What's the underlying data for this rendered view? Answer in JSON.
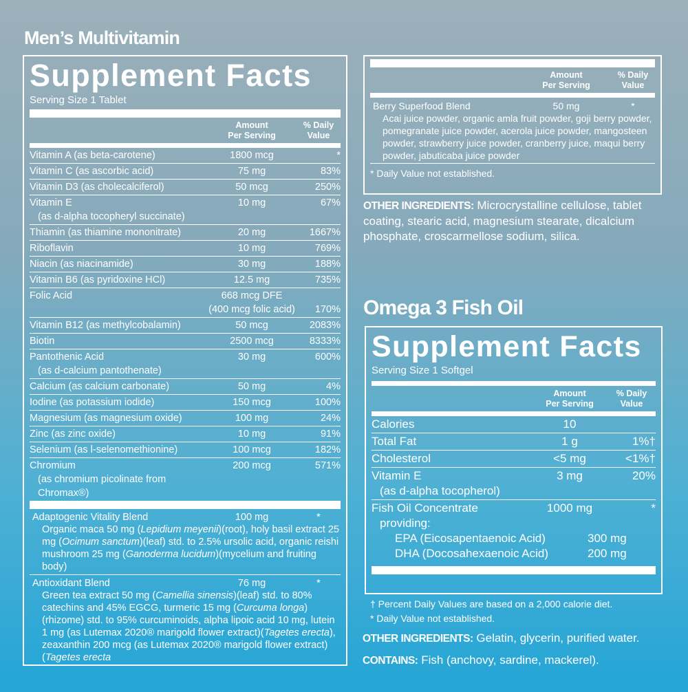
{
  "left": {
    "product": "Men’s Multivitamin",
    "heading": "Supplement Facts",
    "serving": "Serving Size 1 Tablet",
    "col_amount": [
      "Amount",
      "Per Serving"
    ],
    "col_dv": [
      "% Daily",
      "Value"
    ],
    "rows": [
      {
        "name": "Vitamin A (as beta-carotene)",
        "amount": "1800 mcg",
        "dv": "*"
      },
      {
        "name": "Vitamin C (as ascorbic acid)",
        "amount": "75 mg",
        "dv": "83%"
      },
      {
        "name": "Vitamin D3 (as cholecalciferol)",
        "amount": "50 mcg",
        "dv": "250%"
      },
      {
        "name": [
          "Vitamin E",
          "(as d-alpha tocopheryl succinate)"
        ],
        "amount": "10 mg",
        "dv": "67%"
      },
      {
        "name": "Thiamin (as thiamine mononitrate)",
        "amount": "20 mg",
        "dv": "1667%"
      },
      {
        "name": "Riboflavin",
        "amount": "10 mg",
        "dv": "769%"
      },
      {
        "name": "Niacin (as niacinamide)",
        "amount": "30 mg",
        "dv": "188%"
      },
      {
        "name": "Vitamin B6 (as pyridoxine HCl)",
        "amount": "12.5 mg",
        "dv": "735%"
      },
      {
        "name": "Folic Acid",
        "amount": [
          "668 mcg DFE",
          "(400 mcg folic acid)"
        ],
        "dv": "170%"
      },
      {
        "name": "Vitamin B12 (as methylcobalamin)",
        "amount": "50 mcg",
        "dv": "2083%"
      },
      {
        "name": "Biotin",
        "amount": "2500 mcg",
        "dv": "8333%"
      },
      {
        "name": [
          "Pantothenic Acid",
          "(as d-calcium pantothenate)"
        ],
        "amount": "30 mg",
        "dv": "600%"
      },
      {
        "name": "Calcium (as calcium carbonate)",
        "amount": "50 mg",
        "dv": "4%"
      },
      {
        "name": "Iodine (as potassium iodide)",
        "amount": "150 mcg",
        "dv": "100%"
      },
      {
        "name": "Magnesium (as magnesium oxide)",
        "amount": "100 mg",
        "dv": "24%"
      },
      {
        "name": "Zinc (as zinc oxide)",
        "amount": "10 mg",
        "dv": "91%"
      },
      {
        "name": "Selenium (as l-selenomethionine)",
        "amount": "100 mcg",
        "dv": "182%"
      },
      {
        "name": [
          "Chromium",
          "(as chromium picolinate from Chromax®)"
        ],
        "amount": "200 mcg",
        "dv": "571%"
      }
    ],
    "blends": [
      {
        "name": "Adaptogenic Vitality Blend",
        "amount": "100 mg",
        "dv": "*",
        "description": [
          "Organic maca 50 mg (",
          {
            "italic": "Lepidium meyenii"
          },
          ")(root), holy basil extract 25 mg (",
          {
            "italic": "Ocimum sanctum"
          },
          ")(leaf) std. to 2.5% ursolic acid, organic reishi mushroom 25 mg (",
          {
            "italic": "Ganoderma lucidum"
          },
          ")(mycelium and fruiting body)"
        ]
      },
      {
        "name": "Antioxidant Blend",
        "amount": "76 mg",
        "dv": "*",
        "description": [
          "Green tea extract 50 mg (",
          {
            "italic": "Camellia sinensis"
          },
          ")(leaf) std. to 80% catechins and 45% EGCG, turmeric 15 mg (",
          {
            "italic": "Curcuma longa"
          },
          ")(rhizome) std. to 95% curcuminoids, alpha lipoic acid 10 mg, lutein 1 mg (as Lutemax 2020® marigold flower extract)(",
          {
            "italic": "Tagetes erecta"
          },
          "), zeaxanthin 200 mcg (as Lutemax 2020® marigold flower extract)(",
          {
            "italic": "Tagetes erecta"
          }
        ]
      }
    ]
  },
  "continued": {
    "col_amount": [
      "Amount",
      "Per Serving"
    ],
    "col_dv": [
      "% Daily",
      "Value"
    ],
    "blend": {
      "name": "Berry Superfood Blend",
      "amount": "50 mg",
      "dv": "*",
      "description": [
        "Acai juice powder, organic amla fruit powder, goji berry powder, pomegranate juice powder, acerola juice powder, mangosteen powder, strawberry juice powder, cranberry juice, maqui berry powder, jabuticaba juice powder"
      ]
    },
    "footnote": "* Daily Value not established.",
    "other_label": "OTHER INGREDIENTS:",
    "other_text": "Microcrystalline cellulose, tablet coating, stearic acid, magnesium stearate, dicalcium phosphate, croscarmellose sodium, silica."
  },
  "omega": {
    "product": "Omega 3 Fish Oil",
    "heading": "Supplement Facts",
    "serving": "Serving Size 1 Softgel",
    "col_amount": [
      "Amount",
      "Per Serving"
    ],
    "col_dv": [
      "% Daily",
      "Value"
    ],
    "rows": [
      {
        "name": "Calories",
        "amount": "10"
      },
      {
        "name": "Total Fat",
        "amount": "1 g",
        "dv": "1%†"
      },
      {
        "name": "Cholesterol",
        "amount": "<5 mg",
        "dv": "<1%†"
      },
      {
        "name": [
          "Vitamin E",
          "(as d-alpha tocopherol)"
        ],
        "amount": "3 mg",
        "dv": "20%"
      },
      {
        "name": [
          "Fish Oil Concentrate",
          "providing:"
        ],
        "amount": "1000 mg",
        "dv": "*",
        "components": [
          {
            "name": "EPA (Eicosapentaenoic Acid)",
            "amount": "300 mg"
          },
          {
            "name": "DHA (Docosahexaenoic Acid)",
            "amount": "200 mg"
          }
        ]
      }
    ],
    "footnotes": [
      "† Percent Daily Values are based on a 2,000 calorie diet.",
      "* Daily Value not established."
    ],
    "other_label": "OTHER INGREDIENTS:",
    "other_text": "Gelatin, glycerin, purified water.",
    "contains_label": "CONTAINS:",
    "contains_text": "Fish (anchovy, sardine, mackerel)."
  }
}
